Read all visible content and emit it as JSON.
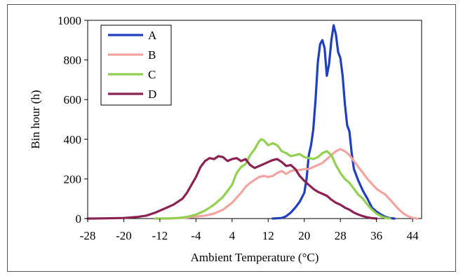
{
  "chart_data": {
    "type": "line",
    "xlabel": "Ambient Temperature (°C)",
    "ylabel": "Bin hour (h)",
    "xlim": [
      -28,
      46
    ],
    "ylim": [
      0,
      1000
    ],
    "x_ticks": [
      "-28",
      "-20",
      "-12",
      "-4",
      "4",
      "12",
      "20",
      "28",
      "36",
      "44"
    ],
    "y_ticks": [
      "0",
      "200",
      "400",
      "600",
      "800",
      "1000"
    ],
    "grid": false,
    "legend_position": "top-left",
    "series": [
      {
        "name": "A",
        "color": "#1f3fbf",
        "points": [
          [
            13,
            0
          ],
          [
            15,
            3
          ],
          [
            16,
            12
          ],
          [
            17,
            30
          ],
          [
            18,
            55
          ],
          [
            19,
            85
          ],
          [
            20,
            130
          ],
          [
            20.5,
            200
          ],
          [
            21,
            320
          ],
          [
            21.5,
            370
          ],
          [
            22,
            450
          ],
          [
            22.5,
            600
          ],
          [
            23,
            790
          ],
          [
            23.5,
            880
          ],
          [
            24,
            900
          ],
          [
            24.5,
            860
          ],
          [
            25,
            720
          ],
          [
            25.5,
            780
          ],
          [
            26,
            900
          ],
          [
            26.5,
            975
          ],
          [
            27,
            930
          ],
          [
            27.5,
            840
          ],
          [
            28,
            810
          ],
          [
            28.5,
            720
          ],
          [
            29,
            580
          ],
          [
            29.5,
            470
          ],
          [
            30,
            440
          ],
          [
            30.5,
            330
          ],
          [
            31,
            250
          ],
          [
            32,
            190
          ],
          [
            33,
            140
          ],
          [
            34,
            100
          ],
          [
            35,
            55
          ],
          [
            36,
            35
          ],
          [
            37,
            20
          ],
          [
            38,
            8
          ],
          [
            39,
            2
          ],
          [
            40,
            0
          ]
        ]
      },
      {
        "name": "B",
        "color": "#f4a4a0",
        "points": [
          [
            -13,
            0
          ],
          [
            -10,
            0
          ],
          [
            -8,
            2
          ],
          [
            -6,
            5
          ],
          [
            -4,
            10
          ],
          [
            -2,
            15
          ],
          [
            0,
            25
          ],
          [
            2,
            45
          ],
          [
            4,
            80
          ],
          [
            6,
            130
          ],
          [
            7,
            160
          ],
          [
            8,
            180
          ],
          [
            9,
            195
          ],
          [
            10,
            210
          ],
          [
            11,
            215
          ],
          [
            12,
            210
          ],
          [
            13,
            215
          ],
          [
            14,
            230
          ],
          [
            15,
            240
          ],
          [
            16,
            225
          ],
          [
            17,
            240
          ],
          [
            18,
            245
          ],
          [
            19,
            245
          ],
          [
            20,
            250
          ],
          [
            21,
            250
          ],
          [
            22,
            260
          ],
          [
            23,
            270
          ],
          [
            24,
            280
          ],
          [
            25,
            300
          ],
          [
            26,
            320
          ],
          [
            27,
            340
          ],
          [
            28,
            350
          ],
          [
            29,
            340
          ],
          [
            30,
            320
          ],
          [
            31,
            290
          ],
          [
            32,
            260
          ],
          [
            33,
            230
          ],
          [
            34,
            200
          ],
          [
            35,
            175
          ],
          [
            36,
            150
          ],
          [
            37,
            135
          ],
          [
            38,
            120
          ],
          [
            39,
            95
          ],
          [
            40,
            70
          ],
          [
            41,
            45
          ],
          [
            42,
            25
          ],
          [
            43,
            12
          ],
          [
            44,
            4
          ],
          [
            45,
            0
          ]
        ]
      },
      {
        "name": "C",
        "color": "#92d050",
        "points": [
          [
            -13,
            0
          ],
          [
            -10,
            1
          ],
          [
            -8,
            3
          ],
          [
            -6,
            8
          ],
          [
            -4,
            20
          ],
          [
            -2,
            40
          ],
          [
            0,
            70
          ],
          [
            2,
            110
          ],
          [
            4,
            170
          ],
          [
            5,
            230
          ],
          [
            6,
            260
          ],
          [
            7,
            275
          ],
          [
            8,
            320
          ],
          [
            9,
            350
          ],
          [
            10,
            390
          ],
          [
            10.5,
            400
          ],
          [
            11,
            395
          ],
          [
            12,
            370
          ],
          [
            13,
            380
          ],
          [
            14,
            370
          ],
          [
            15,
            340
          ],
          [
            16,
            330
          ],
          [
            17,
            315
          ],
          [
            18,
            320
          ],
          [
            19,
            325
          ],
          [
            20,
            310
          ],
          [
            21,
            305
          ],
          [
            22,
            300
          ],
          [
            23,
            310
          ],
          [
            24,
            330
          ],
          [
            25,
            340
          ],
          [
            26,
            320
          ],
          [
            27,
            270
          ],
          [
            28,
            230
          ],
          [
            29,
            200
          ],
          [
            30,
            180
          ],
          [
            31,
            150
          ],
          [
            32,
            120
          ],
          [
            33,
            100
          ],
          [
            34,
            70
          ],
          [
            35,
            45
          ],
          [
            36,
            25
          ],
          [
            37,
            12
          ],
          [
            38,
            4
          ],
          [
            39,
            0
          ]
        ]
      },
      {
        "name": "D",
        "color": "#8b2252",
        "points": [
          [
            -28,
            0
          ],
          [
            -24,
            1
          ],
          [
            -20,
            3
          ],
          [
            -17,
            8
          ],
          [
            -15,
            15
          ],
          [
            -13,
            30
          ],
          [
            -11,
            50
          ],
          [
            -9,
            70
          ],
          [
            -7,
            100
          ],
          [
            -6,
            130
          ],
          [
            -5,
            170
          ],
          [
            -4,
            210
          ],
          [
            -3,
            260
          ],
          [
            -2,
            290
          ],
          [
            -1,
            305
          ],
          [
            0,
            300
          ],
          [
            1,
            315
          ],
          [
            2,
            310
          ],
          [
            3,
            290
          ],
          [
            4,
            300
          ],
          [
            5,
            305
          ],
          [
            6,
            290
          ],
          [
            7,
            300
          ],
          [
            8,
            270
          ],
          [
            9,
            255
          ],
          [
            10,
            265
          ],
          [
            11,
            275
          ],
          [
            12,
            285
          ],
          [
            13,
            295
          ],
          [
            14,
            300
          ],
          [
            15,
            285
          ],
          [
            16,
            265
          ],
          [
            17,
            270
          ],
          [
            18,
            250
          ],
          [
            19,
            215
          ],
          [
            20,
            190
          ],
          [
            21,
            170
          ],
          [
            22,
            150
          ],
          [
            23,
            135
          ],
          [
            24,
            125
          ],
          [
            25,
            115
          ],
          [
            26,
            95
          ],
          [
            27,
            80
          ],
          [
            28,
            70
          ],
          [
            29,
            55
          ],
          [
            30,
            45
          ],
          [
            31,
            30
          ],
          [
            32,
            20
          ],
          [
            33,
            12
          ],
          [
            34,
            6
          ],
          [
            35,
            2
          ],
          [
            36,
            0
          ]
        ]
      }
    ]
  }
}
